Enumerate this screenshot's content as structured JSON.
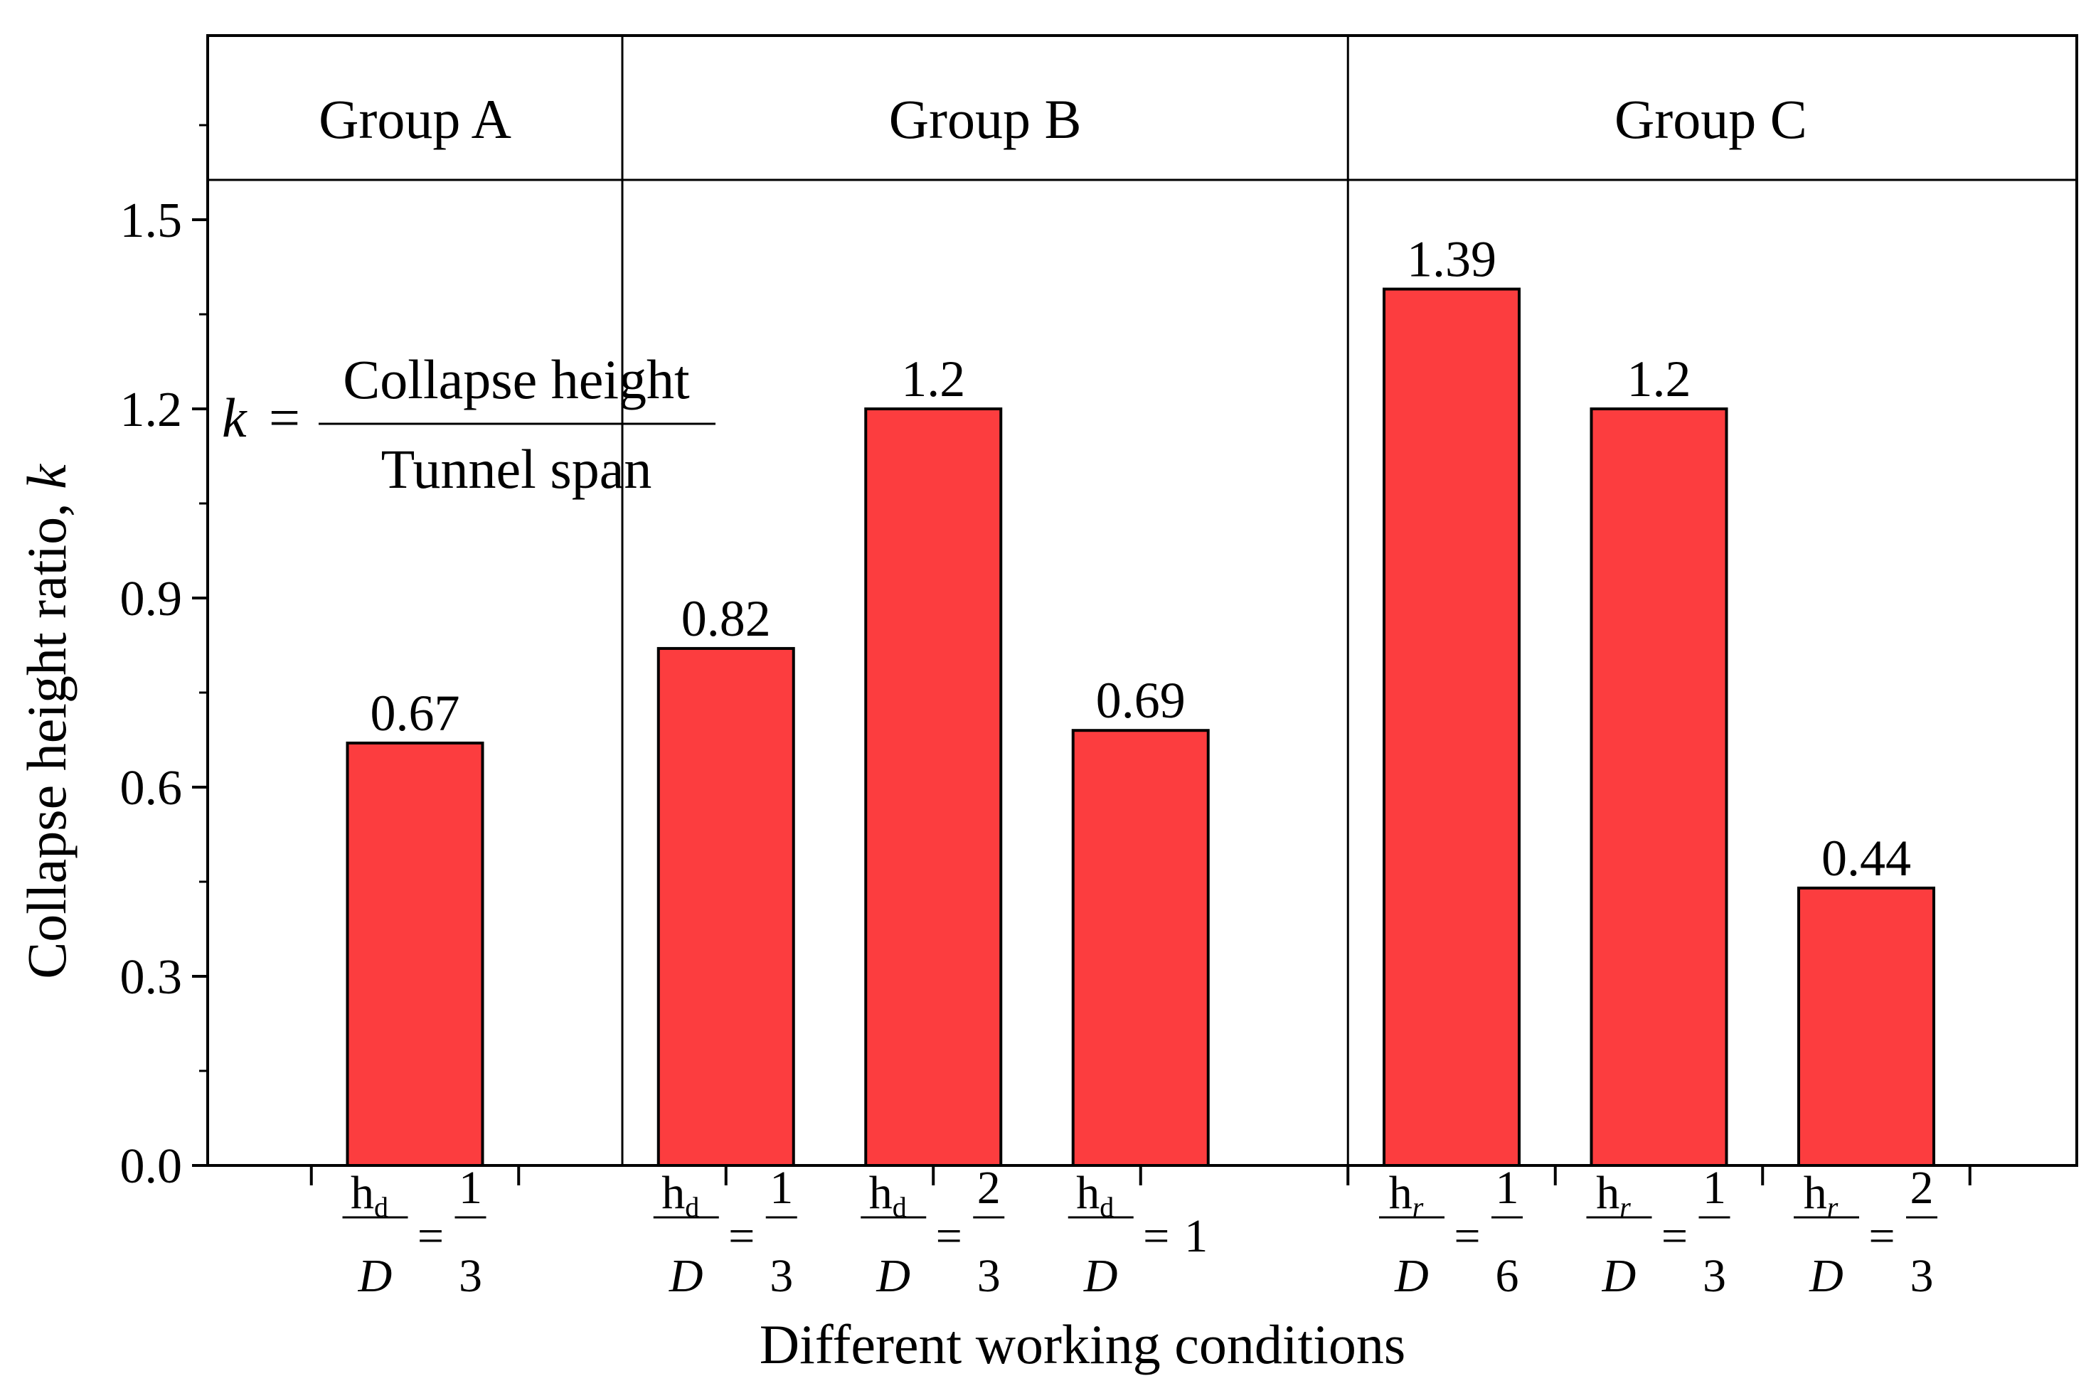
{
  "chart_data": {
    "type": "bar",
    "title": "",
    "ylabel": "Collapse height ratio, ",
    "ylabel_var": "k",
    "xlabel": "Different working conditions",
    "ylim": [
      0,
      1.74
    ],
    "yticks": [
      "0.0",
      "0.3",
      "0.6",
      "0.9",
      "1.2",
      "1.5"
    ],
    "grid": false,
    "formula": {
      "lhs": "k",
      "eq": "=",
      "numerator": "Collapse height",
      "denominator": "Tunnel span"
    },
    "groups": [
      {
        "name": "Group A",
        "category_slots": 2
      },
      {
        "name": "Group B",
        "category_slots": 3.5
      },
      {
        "name": "Group C",
        "category_slots": 3.5
      }
    ],
    "bars": [
      {
        "group": "Group A",
        "value": 0.67,
        "label": "0.67",
        "var": "h",
        "sub": "d",
        "sub_italic": false,
        "den": "D",
        "rhs_num": "1",
        "rhs_den": "3"
      },
      {
        "group": "Group B",
        "value": 0.82,
        "label": "0.82",
        "var": "h",
        "sub": "d",
        "sub_italic": false,
        "den": "D",
        "rhs_num": "1",
        "rhs_den": "3"
      },
      {
        "group": "Group B",
        "value": 1.2,
        "label": "1.2",
        "var": "h",
        "sub": "d",
        "sub_italic": false,
        "den": "D",
        "rhs_num": "2",
        "rhs_den": "3"
      },
      {
        "group": "Group B",
        "value": 0.69,
        "label": "0.69",
        "var": "h",
        "sub": "d",
        "sub_italic": false,
        "den": "D",
        "rhs_whole": "1"
      },
      {
        "group": "Group C",
        "value": 1.39,
        "label": "1.39",
        "var": "h",
        "sub": "r",
        "sub_italic": true,
        "den": "D",
        "rhs_num": "1",
        "rhs_den": "6"
      },
      {
        "group": "Group C",
        "value": 1.2,
        "label": "1.2",
        "var": "h",
        "sub": "r",
        "sub_italic": true,
        "den": "D",
        "rhs_num": "1",
        "rhs_den": "3"
      },
      {
        "group": "Group C",
        "value": 0.44,
        "label": "0.44",
        "var": "h",
        "sub": "r",
        "sub_italic": true,
        "den": "D",
        "rhs_num": "2",
        "rhs_den": "3"
      }
    ],
    "colors": {
      "bar": "#fc3d3f",
      "stroke": "#000000"
    }
  }
}
